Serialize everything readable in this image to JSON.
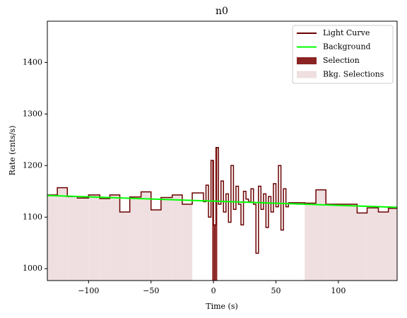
{
  "chart_data": {
    "type": "step",
    "title": "n0",
    "x_label": "Time (s)",
    "y_label": "Rate (cnts/s)",
    "xlim": [
      -133,
      147
    ],
    "ylim": [
      977,
      1480
    ],
    "xticks": [
      {
        "value": -100,
        "label": "−100"
      },
      {
        "value": -50,
        "label": "−50"
      },
      0,
      50,
      100
    ],
    "yticks": [
      1000,
      1100,
      1200,
      1300,
      1400
    ],
    "legend": "upper right",
    "light_curve": {
      "name": "Light Curve",
      "color": "#6b0000",
      "bins": [
        -133,
        -125,
        -117,
        -109,
        -100,
        -91,
        -83,
        -75,
        -67,
        -58,
        -50,
        -42,
        -33,
        -25,
        -17,
        -8,
        -6,
        -4,
        -2,
        0,
        2,
        4,
        6,
        8,
        10,
        12,
        14,
        16,
        18,
        20,
        22,
        24,
        26,
        28,
        30,
        32,
        34,
        36,
        38,
        40,
        42,
        44,
        46,
        48,
        50,
        52,
        54,
        56,
        58,
        60,
        73,
        82,
        90,
        115,
        123,
        132,
        140,
        147
      ],
      "values": [
        1143,
        1157,
        1140,
        1137,
        1143,
        1136,
        1143,
        1110,
        1139,
        1149,
        1114,
        1138,
        1143,
        1125,
        1147,
        1130,
        1162,
        1100,
        1210,
        1085,
        1235,
        1125,
        1170,
        1110,
        1145,
        1090,
        1200,
        1115,
        1160,
        1125,
        1085,
        1150,
        1135,
        1130,
        1155,
        1125,
        1030,
        1160,
        1115,
        1145,
        1080,
        1140,
        1110,
        1165,
        1120,
        1200,
        1075,
        1155,
        1120,
        1128,
        1127,
        1153,
        1125,
        1108,
        1118,
        1110,
        1117
      ]
    },
    "background": {
      "name": "Background",
      "color": "#00ff00",
      "x": [
        -133,
        147
      ],
      "values": [
        1142,
        1119
      ]
    },
    "selection": {
      "name": "Selection",
      "color": "#8b2323",
      "range": [
        -1,
        3
      ]
    },
    "bkg_selections": {
      "name": "Bkg. Selections",
      "color": "#efdfe0",
      "ranges": [
        [
          -133,
          -17
        ],
        [
          73,
          147
        ]
      ]
    }
  }
}
